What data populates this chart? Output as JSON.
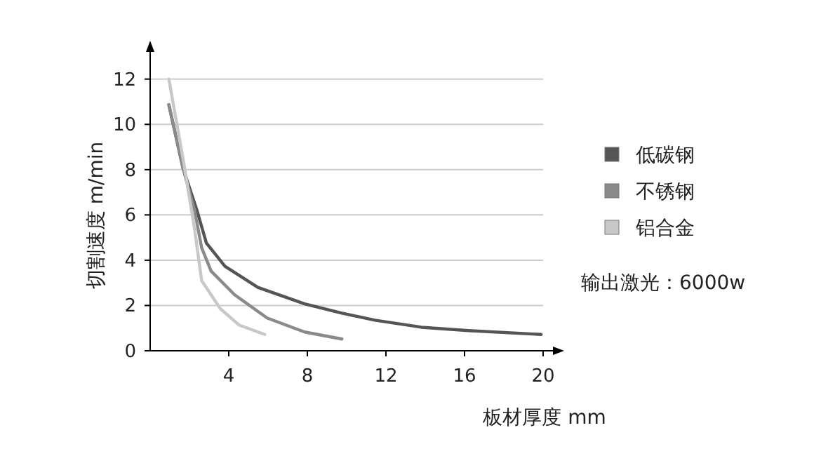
{
  "chart_data": {
    "type": "line",
    "xlabel": "板材厚度  mm",
    "ylabel": "切割速度  m/min",
    "xlim": [
      0,
      20.5
    ],
    "ylim": [
      0,
      13.2
    ],
    "xticks": [
      4,
      8,
      12,
      16,
      20
    ],
    "yticks": [
      0,
      2,
      4,
      6,
      8,
      10,
      12
    ],
    "grid": "y",
    "legend": "right",
    "marker": "none",
    "line_style": "solid",
    "annotations": [
      "输出激光：6000w"
    ],
    "series": [
      {
        "name": "低碳钢",
        "color": "#555555",
        "x": [
          0.95,
          1.67,
          2.38,
          2.86,
          3.81,
          5.48,
          7.86,
          9.76,
          11.43,
          13.8,
          16.2,
          19.9
        ],
        "values": [
          10.87,
          8.07,
          6.21,
          4.76,
          3.73,
          2.8,
          2.07,
          1.66,
          1.35,
          1.04,
          0.89,
          0.72
        ]
      },
      {
        "name": "不锈钢",
        "color": "#8a8a8a",
        "x": [
          0.95,
          1.67,
          2.26,
          2.62,
          3.1,
          4.29,
          5.95,
          7.86,
          9.76
        ],
        "values": [
          10.87,
          8.07,
          6.2,
          4.55,
          3.52,
          2.48,
          1.45,
          0.83,
          0.52
        ]
      },
      {
        "name": "铝合金",
        "color": "#c8c8c8",
        "x": [
          0.95,
          1.67,
          2.26,
          2.62,
          3.57,
          4.52,
          5.83
        ],
        "values": [
          12.0,
          8.5,
          5.38,
          3.1,
          1.86,
          1.14,
          0.72
        ]
      }
    ]
  }
}
